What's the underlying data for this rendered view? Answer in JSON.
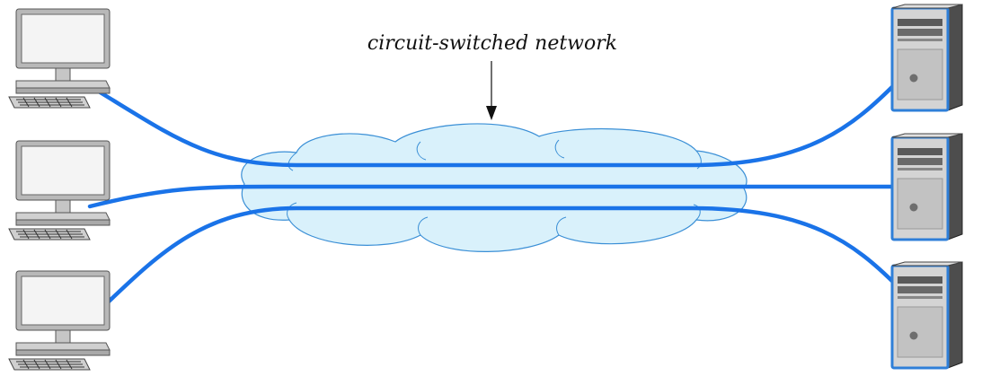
{
  "diagram": {
    "label": "circuit-switched network",
    "colors": {
      "link": "#1a73e8",
      "cloud_fill": "#d9f1fb",
      "cloud_stroke": "#3a8fd6",
      "server_accent": "#2f7fd8"
    },
    "clients": [
      {
        "icon": "desktop-computer-icon"
      },
      {
        "icon": "desktop-computer-icon"
      },
      {
        "icon": "desktop-computer-icon"
      }
    ],
    "servers": [
      {
        "icon": "server-tower-icon"
      },
      {
        "icon": "server-tower-icon"
      },
      {
        "icon": "server-tower-icon"
      }
    ]
  }
}
